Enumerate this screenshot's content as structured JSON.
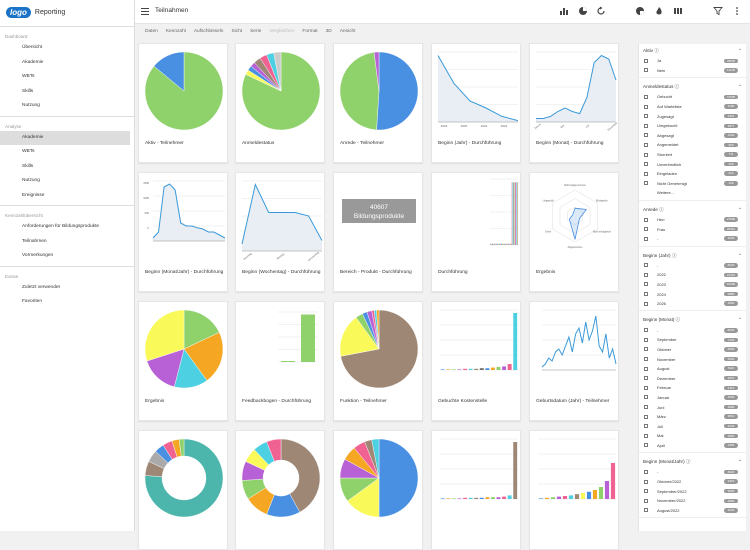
{
  "app": {
    "logo": "logo",
    "brand": "Reporting",
    "page_title": "Teilnahmen"
  },
  "sidebar": {
    "sections": [
      {
        "title": "Dashboard",
        "items": [
          "Übersicht",
          "Akademie",
          "WBTs",
          "Skills",
          "Nutzung"
        ]
      },
      {
        "title": "Analyse",
        "items": [
          "Akademie",
          "WBTs",
          "Skills",
          "Nutzung",
          "Ereignisse"
        ]
      },
      {
        "title": "Kennzahlübersicht",
        "items": [
          "Anforderungen für Bildungsprodukte",
          "Teilnahmen",
          "Vormerkungen"
        ]
      },
      {
        "title": "Extras",
        "items": [
          "Zuletzt verwendet",
          "Favoriten"
        ]
      }
    ],
    "active": "Akademie"
  },
  "tabs": [
    "Daten",
    "Kennzahl",
    "Aufschlüsseln",
    "Sicht",
    "Serie",
    "Vergleichen",
    "Format",
    "3D",
    "Ansicht"
  ],
  "topbar_icons": [
    "bar-chart-icon",
    "pie-chart-icon",
    "refresh-icon",
    "pie-chart-icon",
    "flame-icon",
    "columns-icon",
    "filter-icon",
    "more-icon"
  ],
  "cards": [
    {
      "label": "Aktiv - Teilnehmer",
      "type": "pie"
    },
    {
      "label": "Anmeldestatus",
      "type": "pie"
    },
    {
      "label": "Anrede - Teilnehmer",
      "type": "pie"
    },
    {
      "label": "Beginn (Jahr) - Durchführung",
      "type": "line"
    },
    {
      "label": "Beginn (Monat) - Durchführung",
      "type": "line"
    },
    {
      "label": "Beginn (Monat/Jahr) - Durchführung",
      "type": "line"
    },
    {
      "label": "Beginn (Wochentag) - Durchführung",
      "type": "line"
    },
    {
      "label": "Bereich - Produkt - Durchführung",
      "type": "kpi",
      "kpi_value": "40607",
      "kpi_text": "Bildungsprodukte"
    },
    {
      "label": "Durchführung",
      "type": "bar"
    },
    {
      "label": "Ergebnis",
      "type": "radar"
    },
    {
      "label": "Ergebnis",
      "type": "pie"
    },
    {
      "label": "Feedbackbogen - Durchführung",
      "type": "bar"
    },
    {
      "label": "Funktion - Teilnehmer",
      "type": "pie"
    },
    {
      "label": "Gebuchte Kostenstelle",
      "type": "bar"
    },
    {
      "label": "Geburtsdatum (Jahr) - Teilnehmer",
      "type": "line"
    },
    {
      "label": "",
      "type": "donut"
    },
    {
      "label": "",
      "type": "donut"
    },
    {
      "label": "",
      "type": "pie"
    },
    {
      "label": "",
      "type": "bar"
    },
    {
      "label": "",
      "type": "bar"
    }
  ],
  "chart_text": {
    "c4_years": [
      "2018",
      "2020",
      "2022",
      "2024"
    ],
    "c5_months": [
      "Januar",
      "Mai",
      "Juli",
      "Dezember"
    ],
    "c6_ymax": "1500",
    "c6_ylevels": [
      "1500",
      "1000",
      "500",
      "0"
    ],
    "c7_days": [
      "Sonntag",
      "Montag",
      "Donnerstag"
    ],
    "c10_labels": [
      "Nicht teilgenommen",
      "Erfolgreich",
      "Nicht erfolgreich",
      "Abgebrochen",
      "Ohne",
      "Ungeprüft"
    ]
  },
  "filters": [
    {
      "title": "Aktiv",
      "rows": [
        {
          "label": "Ja",
          "count": "45555"
        },
        {
          "label": "Nein",
          "count": "12235"
        }
      ]
    },
    {
      "title": "Anmeldestatus",
      "rows": [
        {
          "label": "Gebucht",
          "count": "47905"
        },
        {
          "label": "Auf Warteliste",
          "count": "3180"
        },
        {
          "label": "Zugesagt",
          "count": "2301"
        },
        {
          "label": "Umgebucht",
          "count": "1877"
        },
        {
          "label": "Abgesagt",
          "count": "1230"
        },
        {
          "label": "Angemeldet",
          "count": "983"
        },
        {
          "label": "Storniert",
          "count": "711"
        },
        {
          "label": "Unverbindlich",
          "count": "340"
        },
        {
          "label": "Eingeladen",
          "count": "212"
        },
        {
          "label": "Nicht Genehmigt",
          "count": "109"
        }
      ],
      "more": "Weitere..."
    },
    {
      "title": "Anrede",
      "rows": [
        {
          "label": "Herr",
          "count": "27980"
        },
        {
          "label": "Frau",
          "count": "25310"
        },
        {
          "label": "-",
          "count": "4500"
        }
      ]
    },
    {
      "title": "Beginn (Jahr)",
      "rows": [
        {
          "label": "-",
          "count": "8220"
        },
        {
          "label": "2022",
          "count": "21410"
        },
        {
          "label": "2023",
          "count": "15330"
        },
        {
          "label": "2024",
          "count": "9880"
        },
        {
          "label": "2026",
          "count": "2950"
        }
      ]
    },
    {
      "title": "Beginn (Monat)",
      "rows": [
        {
          "label": "-",
          "count": "8220"
        },
        {
          "label": "September",
          "count": "7120"
        },
        {
          "label": "Oktober",
          "count": "6050"
        },
        {
          "label": "November",
          "count": "5630"
        },
        {
          "label": "August",
          "count": "5110"
        },
        {
          "label": "Dezember",
          "count": "4870"
        },
        {
          "label": "Februar",
          "count": "4410"
        },
        {
          "label": "Januar",
          "count": "4060"
        },
        {
          "label": "Juni",
          "count": "3980"
        },
        {
          "label": "März",
          "count": "3510"
        },
        {
          "label": "Juli",
          "count": "3120"
        },
        {
          "label": "Mai",
          "count": "2860"
        },
        {
          "label": "April",
          "count": "2450"
        }
      ]
    },
    {
      "title": "Beginn (Monat/Jahr)",
      "rows": [
        {
          "label": "-",
          "count": "8220"
        },
        {
          "label": "Oktober/2022",
          "count": "3410"
        },
        {
          "label": "September/2022",
          "count": "3050"
        },
        {
          "label": "November/2022",
          "count": "2890"
        },
        {
          "label": "August/2022",
          "count": "2630"
        }
      ]
    }
  ]
}
